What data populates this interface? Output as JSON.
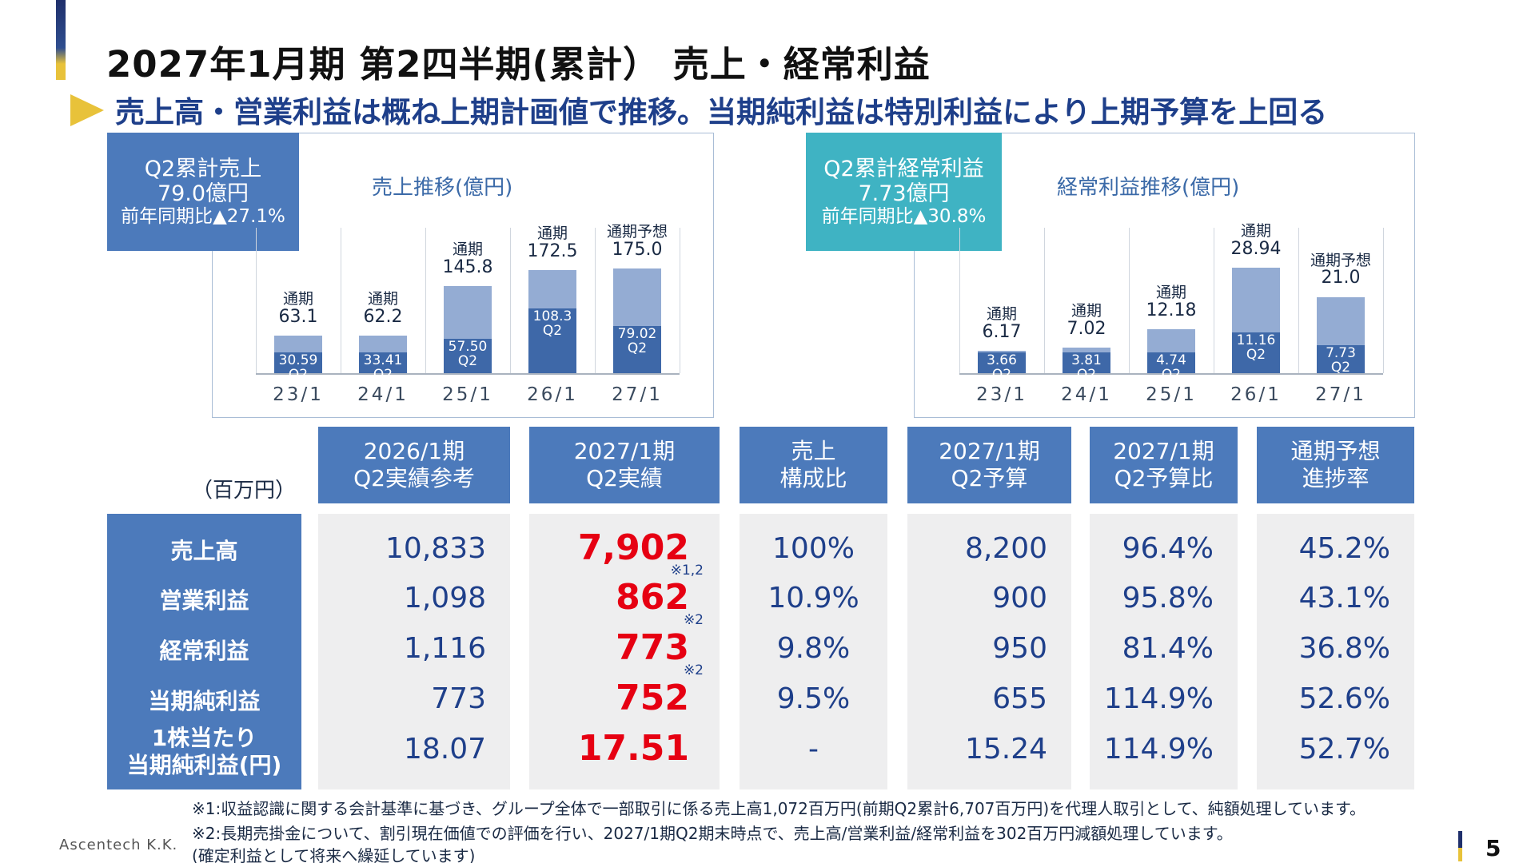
{
  "header": {
    "title": "2027年1月期 第2四半期(累計） 売上・経常利益",
    "subtitle": "売上高・営業利益は概ね上期計画値で推移。当期純利益は特別利益により上期予算を上回る"
  },
  "left_panel": {
    "kpi": {
      "line1": "Q2累計売上",
      "line2": "79.0億円",
      "line3": "前年同期比▲27.1%"
    },
    "chart_title": "売上推移(億円)"
  },
  "right_panel": {
    "kpi": {
      "line1": "Q2累計経常利益",
      "line2": "7.73億円",
      "line3": "前年同期比▲30.8%"
    },
    "chart_title": "経常利益推移(億円)"
  },
  "chart_data": [
    {
      "type": "bar",
      "title": "売上推移(億円)",
      "categories": [
        "23/1",
        "24/1",
        "25/1",
        "26/1",
        "27/1"
      ],
      "series": [
        {
          "name": "通期",
          "values": [
            63.1,
            62.2,
            145.8,
            172.5,
            175.0
          ]
        },
        {
          "name": "Q2",
          "values": [
            30.59,
            33.41,
            57.5,
            108.3,
            79.02
          ]
        }
      ],
      "top_labels": [
        [
          "通期",
          "63.1"
        ],
        [
          "通期",
          "62.2"
        ],
        [
          "通期",
          "145.8"
        ],
        [
          "通期",
          "172.5"
        ],
        [
          "通期予想",
          "175.0"
        ]
      ],
      "q2_labels": [
        "30.59",
        "33.41",
        "57.50",
        "108.3",
        "79.02"
      ],
      "q2_tag": "Q2",
      "ylim": [
        0,
        200
      ]
    },
    {
      "type": "bar",
      "title": "経常利益推移(億円)",
      "categories": [
        "23/1",
        "24/1",
        "25/1",
        "26/1",
        "27/1"
      ],
      "series": [
        {
          "name": "通期",
          "values": [
            6.17,
            7.02,
            12.18,
            28.94,
            21.0
          ]
        },
        {
          "name": "Q2",
          "values": [
            3.66,
            3.81,
            4.74,
            11.16,
            7.73
          ]
        }
      ],
      "top_labels": [
        [
          "通期",
          "6.17"
        ],
        [
          "通期",
          "7.02"
        ],
        [
          "通期",
          "12.18"
        ],
        [
          "通期",
          "28.94"
        ],
        [
          "通期予想",
          "21.0"
        ]
      ],
      "q2_labels": [
        "3.66",
        "3.81",
        "4.74",
        "11.16",
        "7.73"
      ],
      "q2_tag": "Q2",
      "ylim": [
        0,
        33
      ]
    }
  ],
  "table": {
    "unit": "（百万円）",
    "headers": [
      [
        "2026/1期",
        "Q2実績参考"
      ],
      [
        "2027/1期",
        "Q2実績"
      ],
      [
        "売上",
        "構成比"
      ],
      [
        "2027/1期",
        "Q2予算"
      ],
      [
        "2027/1期",
        "Q2予算比"
      ],
      [
        "通期予想",
        "進捗率"
      ]
    ],
    "rows": [
      {
        "label": [
          "売上高"
        ],
        "values": [
          "10,833",
          "7,902",
          "100%",
          "8,200",
          "96.4%",
          "45.2%"
        ],
        "note": "※1,2"
      },
      {
        "label": [
          "営業利益"
        ],
        "values": [
          "1,098",
          "862",
          "10.9%",
          "900",
          "95.8%",
          "43.1%"
        ],
        "note": "※2"
      },
      {
        "label": [
          "経常利益"
        ],
        "values": [
          "1,116",
          "773",
          "9.8%",
          "950",
          "81.4%",
          "36.8%"
        ],
        "note": "※2"
      },
      {
        "label": [
          "当期純利益"
        ],
        "values": [
          "773",
          "752",
          "9.5%",
          "655",
          "114.9%",
          "52.6%"
        ],
        "note": ""
      },
      {
        "label": [
          "1株当たり",
          "当期純利益(円)"
        ],
        "values": [
          "18.07",
          "17.51",
          "-",
          "15.24",
          "114.9%",
          "52.7%"
        ],
        "note": ""
      }
    ]
  },
  "footnotes": {
    "n1": "※1:収益認識に関する会計基準に基づき、グループ全体で一部取引に係る売上高1,072百万円(前期Q2累計6,707百万円)を代理人取引として、純額処理しています。",
    "n2": "※2:長期売掛金について、割引現在価値での評価を行い、2027/1期Q2期末時点で、売上高/営業利益/経常利益を302百万円減額処理しています。",
    "n3": "(確定利益として将来へ繰延しています)"
  },
  "footer": {
    "company": "Ascentech K.K.",
    "page": "5"
  },
  "colors": {
    "navy": "#1e3f8a",
    "blue": "#4c7abb",
    "teal": "#3fb3c3",
    "accent": "#e8c23a",
    "red": "#e60012"
  }
}
